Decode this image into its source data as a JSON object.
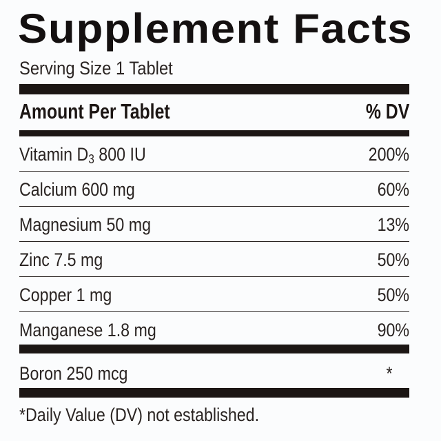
{
  "title": "Supplement Facts",
  "serving_size": "Serving Size 1 Tablet",
  "header": {
    "amount": "Amount Per Tablet",
    "dv": "% DV"
  },
  "nutrients": [
    {
      "name": "Vitamin D",
      "subscript": "3",
      "amount": " 800 IU",
      "dv": "200%"
    },
    {
      "name": "Calcium 600 mg",
      "dv": "60%"
    },
    {
      "name": "Magnesium 50 mg",
      "dv": "13%"
    },
    {
      "name": "Zinc 7.5 mg",
      "dv": "50%"
    },
    {
      "name": "Copper 1 mg",
      "dv": "50%"
    },
    {
      "name": "Manganese 1.8 mg",
      "dv": "90%"
    }
  ],
  "other": {
    "name": "Boron 250 mcg",
    "dv": "*"
  },
  "footnote": "*Daily Value (DV) not established."
}
